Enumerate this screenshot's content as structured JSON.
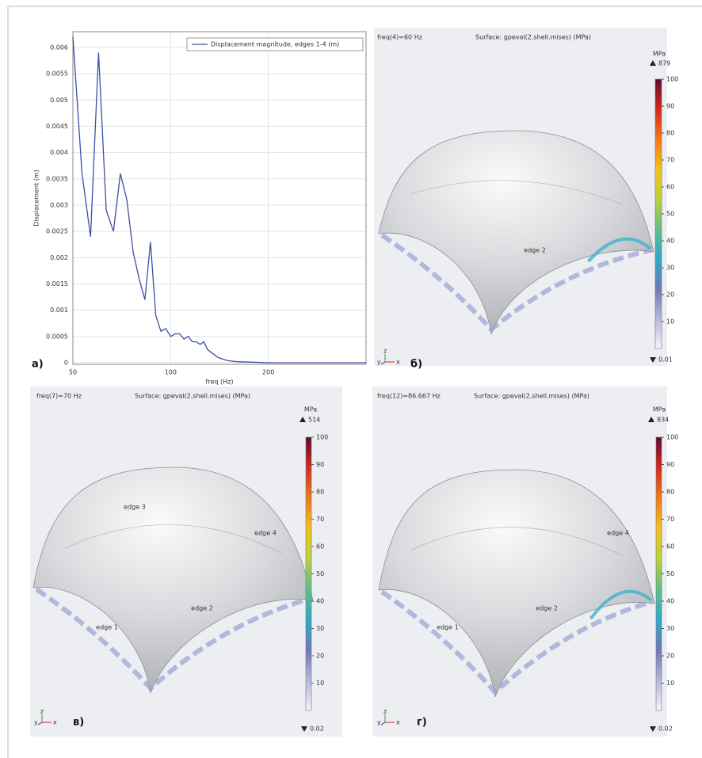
{
  "chart_data": [
    {
      "type": "line",
      "panel_label": "а)",
      "xlabel": "freq (Hz)",
      "ylabel": "Displacement (m)",
      "x": [
        50,
        53.333,
        56.667,
        60,
        63.333,
        66.667,
        70,
        73.333,
        76.667,
        80,
        83.333,
        86.667,
        90,
        93.333,
        96.667,
        100,
        103.333,
        106.667,
        110,
        113.333,
        116.667,
        120,
        123.333,
        126.667,
        130,
        140,
        150,
        160,
        180,
        200,
        250,
        300,
        400
      ],
      "series": [
        {
          "name": "Displacement magnitude, edges 1-4 (m)",
          "color": "#3c4ea8",
          "values": [
            0.0062,
            0.0036,
            0.0024,
            0.0059,
            0.0029,
            0.0025,
            0.0036,
            0.0031,
            0.0021,
            0.0016,
            0.0012,
            0.0023,
            0.0009,
            0.0006,
            0.00065,
            0.0005,
            0.00055,
            0.00055,
            0.00045,
            0.0005,
            0.0004,
            0.0004,
            0.00035,
            0.0004,
            0.00025,
            0.0001,
            4e-05,
            2e-05,
            1e-05,
            0,
            0,
            0,
            0
          ]
        }
      ],
      "xlim": [
        50,
        400
      ],
      "xticks": [
        50,
        100,
        200
      ],
      "xscale": "log",
      "ylim": [
        -3e-05,
        0.0063
      ],
      "yticks": [
        0,
        0.0005,
        0.001,
        0.0015,
        0.002,
        0.0025,
        0.003,
        0.0035,
        0.004,
        0.0045,
        0.005,
        0.0055,
        0.006
      ],
      "grid": true,
      "legend": "upper right"
    },
    {
      "type": "surface",
      "panel_label": "б)",
      "title": "freq(4)=60 Hz",
      "subtitle": "Surface: gpeval(2,shell.mises) (MPa)",
      "colorbar_label": "MPa",
      "max": 879,
      "min": 0.01,
      "clim": [
        0,
        100
      ],
      "cticks": [
        10,
        20,
        30,
        40,
        50,
        60,
        70,
        80,
        90,
        100
      ],
      "colormap": [
        "#f4f4f8",
        "#b7b6d9",
        "#6f78b8",
        "#2fa9c9",
        "#5fbf8a",
        "#bcd23a",
        "#f2c318",
        "#ef7a1c",
        "#d6281f",
        "#5c0a2c"
      ],
      "edge_labels": [
        "edge 2"
      ],
      "axes_triad": [
        "y",
        "z",
        "x"
      ]
    },
    {
      "type": "surface",
      "panel_label": "в)",
      "title": "freq(7)=70 Hz",
      "subtitle": "Surface: gpeval(2,shell.mises) (MPa)",
      "colorbar_label": "MPa",
      "max": 514,
      "min": 0.02,
      "clim": [
        0,
        100
      ],
      "cticks": [
        10,
        20,
        30,
        40,
        50,
        60,
        70,
        80,
        90,
        100
      ],
      "colormap": [
        "#f4f4f8",
        "#b7b6d9",
        "#6f78b8",
        "#2fa9c9",
        "#5fbf8a",
        "#bcd23a",
        "#f2c318",
        "#ef7a1c",
        "#d6281f",
        "#5c0a2c"
      ],
      "edge_labels": [
        "edge 3",
        "edge 4",
        "edge 2",
        "edge 1"
      ],
      "axes_triad": [
        "y",
        "z",
        "x"
      ]
    },
    {
      "type": "surface",
      "panel_label": "г)",
      "title": "freq(12)=86.667 Hz",
      "subtitle": "Surface: gpeval(2,shell.mises) (MPa)",
      "colorbar_label": "MPa",
      "max": 834,
      "min": 0.02,
      "clim": [
        0,
        100
      ],
      "cticks": [
        10,
        20,
        30,
        40,
        50,
        60,
        70,
        80,
        90,
        100
      ],
      "colormap": [
        "#f4f4f8",
        "#b7b6d9",
        "#6f78b8",
        "#2fa9c9",
        "#5fbf8a",
        "#bcd23a",
        "#f2c318",
        "#ef7a1c",
        "#d6281f",
        "#5c0a2c"
      ],
      "edge_labels": [
        "edge 4",
        "edge 2",
        "edge 1"
      ],
      "axes_triad": [
        "y",
        "z",
        "x"
      ]
    }
  ]
}
